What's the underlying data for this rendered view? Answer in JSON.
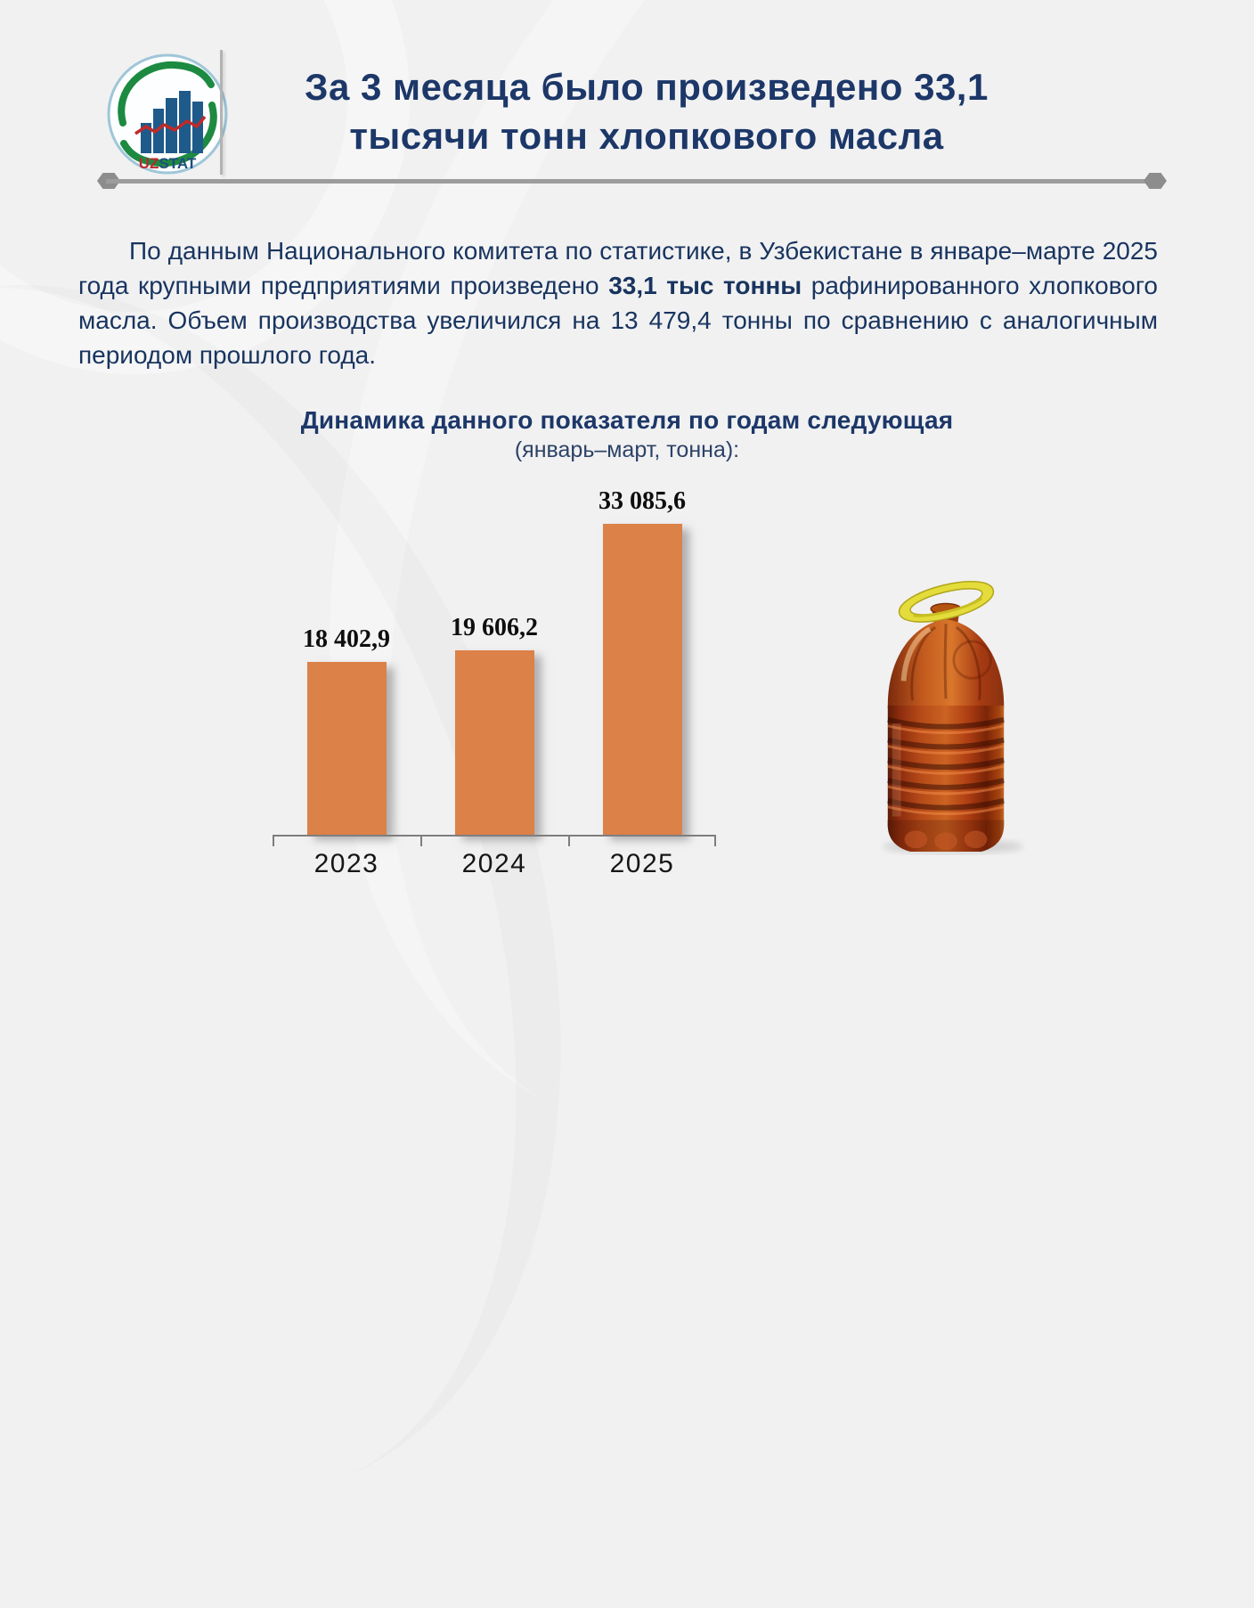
{
  "page": {
    "title_line1": "За 3 месяца было произведено 33,1",
    "title_line2": "тысячи тонн хлопкового масла"
  },
  "logo": {
    "uz": "UZ",
    "stat": "STAT"
  },
  "paragraph": {
    "part1": "По данным Национального комитета по статистике, в Узбекистане в январе–марте 2025 года крупными предприятиями произведено ",
    "bold": "33,1 тыс тонны",
    "part2": " рафинированного хлопкового масла. Объем производства увеличился на 13 479,4 тонны по сравнению с аналогичным периодом прошлого года."
  },
  "chart_data": {
    "type": "bar",
    "title": "Динамика данного показателя по годам следующая",
    "subtitle": "(январь–март, тонна):",
    "categories": [
      "2023",
      "2024",
      "2025"
    ],
    "values": [
      18402.9,
      19606.2,
      33085.6
    ],
    "value_labels": [
      "18 402,9",
      "19 606,2",
      "33 085,6"
    ],
    "xlabel": "",
    "ylabel": "",
    "ylim": [
      0,
      35000
    ],
    "grid": false,
    "legend": false,
    "bar_color": "#dc8148"
  },
  "colors": {
    "accent_navy": "#1c3768",
    "bar_orange": "#dc8148",
    "rule_gray": "#9c9c9c"
  },
  "illustration": {
    "name": "cotton-oil-bottle"
  }
}
